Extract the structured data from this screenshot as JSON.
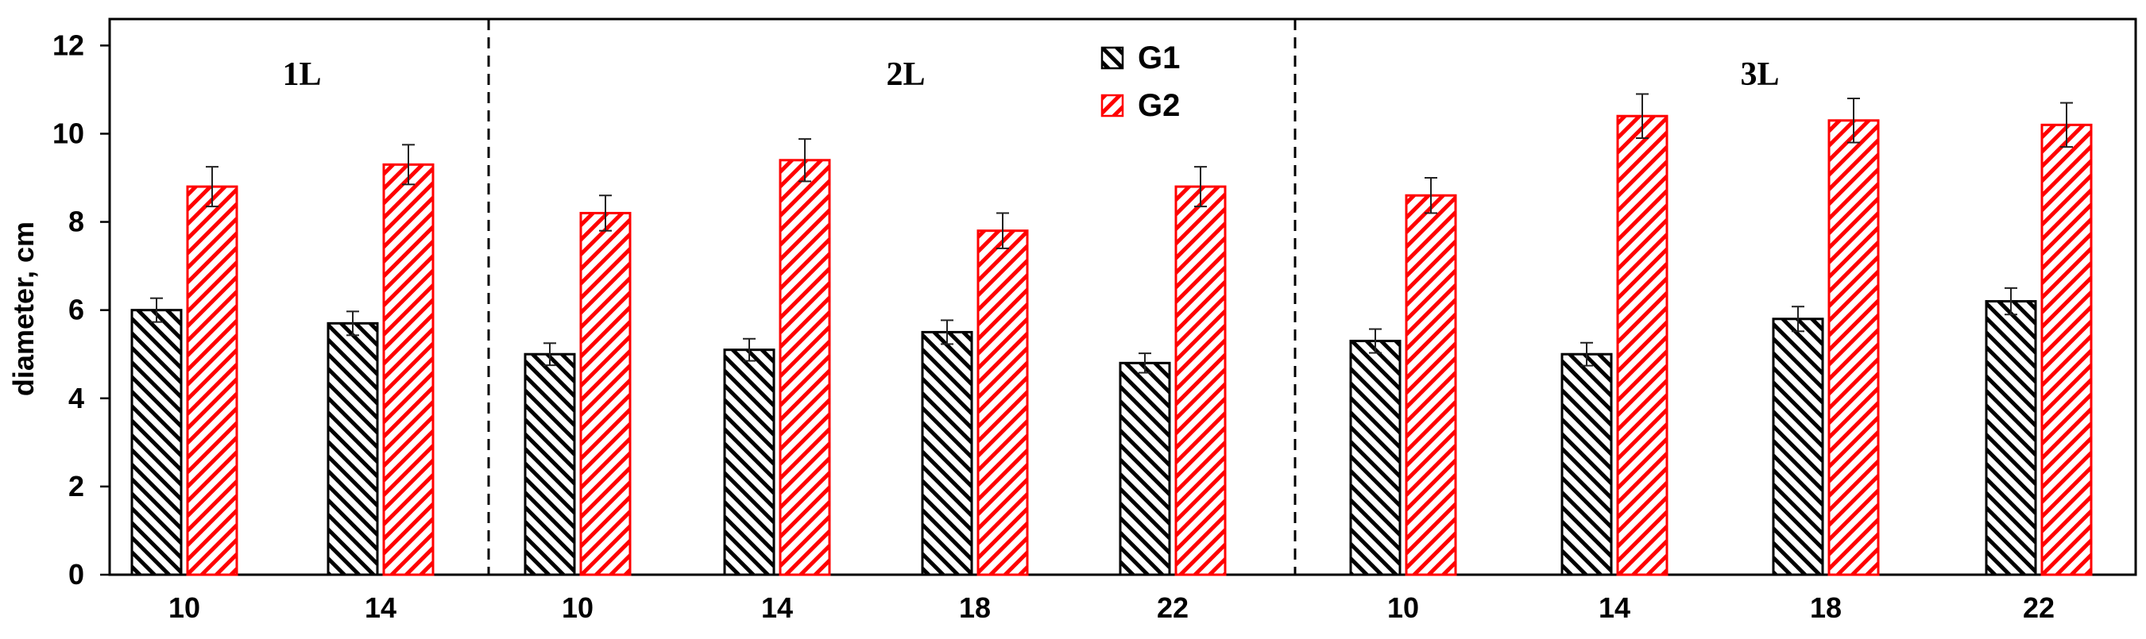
{
  "chart_data": {
    "type": "bar",
    "title": "",
    "xlabel": "",
    "ylabel": "diameter, cm",
    "ylim": [
      0,
      12.6
    ],
    "yticks": [
      0,
      2,
      4,
      6,
      8,
      10,
      12
    ],
    "grid": false,
    "legend_position": "top-center",
    "groups": [
      {
        "label": "1L",
        "categories": [
          "10",
          "14"
        ]
      },
      {
        "label": "2L",
        "categories": [
          "10",
          "14",
          "18",
          "22"
        ]
      },
      {
        "label": "3L",
        "categories": [
          "10",
          "14",
          "18",
          "22"
        ]
      }
    ],
    "series": [
      {
        "name": "G1",
        "color": "#000000",
        "pattern": "diagonal-hatch",
        "values": [
          6.0,
          5.7,
          5.0,
          5.1,
          5.5,
          4.8,
          5.3,
          5.0,
          5.8,
          6.2
        ],
        "errors": [
          0.27,
          0.27,
          0.25,
          0.25,
          0.27,
          0.22,
          0.27,
          0.26,
          0.28,
          0.3
        ]
      },
      {
        "name": "G2",
        "color": "#ff0000",
        "pattern": "diagonal-hatch",
        "values": [
          8.8,
          9.3,
          8.2,
          9.4,
          7.8,
          8.8,
          8.6,
          10.4,
          10.3,
          10.2
        ],
        "errors": [
          0.45,
          0.45,
          0.4,
          0.48,
          0.4,
          0.45,
          0.4,
          0.5,
          0.5,
          0.5
        ]
      }
    ]
  }
}
